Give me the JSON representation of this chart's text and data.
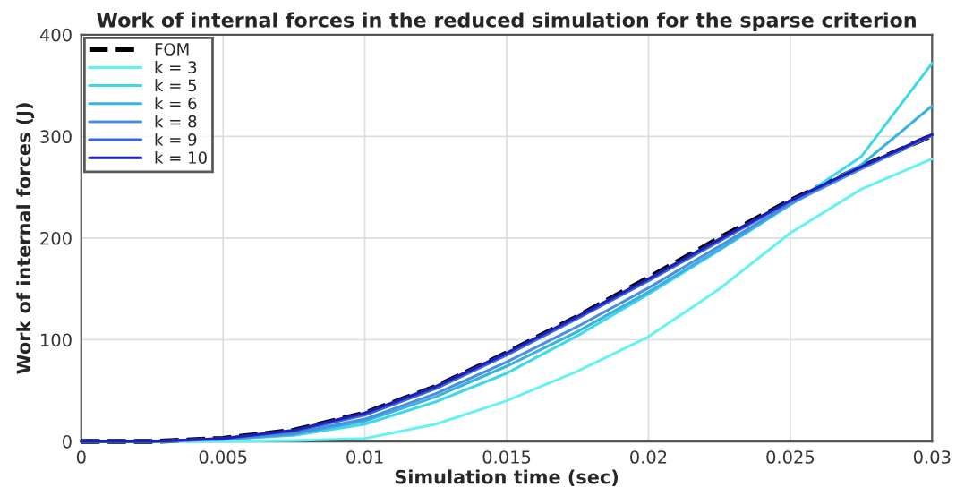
{
  "chart_data": {
    "type": "line",
    "title": "Work of internal forces in the reduced simulation for the sparse criterion",
    "xlabel": "Simulation time (sec)",
    "ylabel": "Work of internal forces (J)",
    "x": [
      0,
      0.0025,
      0.005,
      0.0075,
      0.01,
      0.0125,
      0.015,
      0.0175,
      0.02,
      0.0225,
      0.025,
      0.0275,
      0.03
    ],
    "series": [
      {
        "name": "FOM",
        "color": "#000000",
        "line_style": "dashed",
        "values": [
          0,
          0,
          3,
          11,
          28,
          54,
          87,
          123,
          161,
          200,
          237,
          270,
          301
        ]
      },
      {
        "name": "k = 3",
        "color": "#66f2f2",
        "values": [
          0,
          0,
          0,
          1,
          3,
          17,
          40,
          69,
          103,
          150,
          205,
          248,
          278
        ]
      },
      {
        "name": "k = 5",
        "color": "#3fd8ea",
        "values": [
          0,
          0,
          2,
          6,
          17,
          39,
          67,
          104,
          145,
          188,
          233,
          280,
          372
        ]
      },
      {
        "name": "k = 6",
        "color": "#38b2e0",
        "values": [
          0,
          0,
          2,
          7,
          20,
          44,
          74,
          108,
          147,
          189,
          233,
          272,
          330
        ]
      },
      {
        "name": "k = 8",
        "color": "#4a8ee2",
        "values": [
          0,
          0,
          2,
          8,
          22,
          47,
          78,
          113,
          151,
          192,
          234,
          268,
          301
        ]
      },
      {
        "name": "k = 9",
        "color": "#3a66d6",
        "values": [
          0,
          0,
          3,
          10,
          26,
          52,
          85,
          121,
          158,
          197,
          236,
          270,
          301
        ]
      },
      {
        "name": "k = 10",
        "color": "#1e1eb8",
        "values": [
          0,
          0,
          3,
          11,
          28,
          54,
          87,
          123,
          160,
          199,
          237,
          270,
          302
        ]
      }
    ],
    "xlim": [
      0,
      0.03
    ],
    "xticks": [
      0,
      0.005,
      0.01,
      0.015,
      0.02,
      0.025,
      0.03
    ],
    "ylim": [
      0,
      400
    ],
    "yticks": [
      0,
      100,
      200,
      300,
      400
    ],
    "grid": true,
    "legend": "top left"
  }
}
